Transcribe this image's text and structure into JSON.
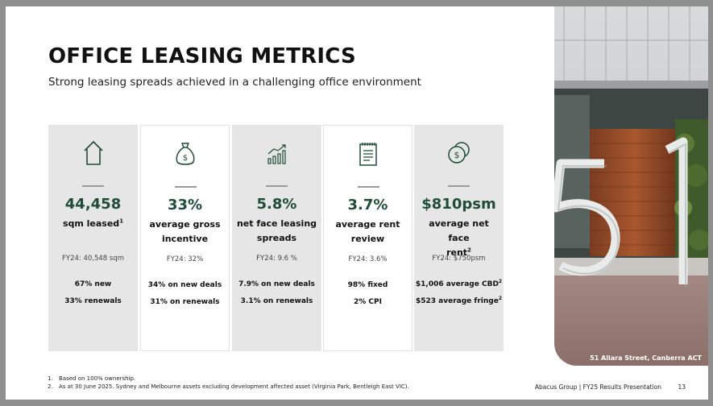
{
  "slide": {
    "title": "OFFICE LEASING METRICS",
    "subtitle": "Strong leasing spreads achieved in a challenging office environment"
  },
  "accent_color": "#1f4d37",
  "cards": [
    {
      "icon": "house-icon",
      "value": "44,458",
      "label": "sqm leased",
      "label_sup": "1",
      "label_line2": "",
      "fy": "FY24: 40,548 sqm",
      "detail1": "67% new",
      "detail1_sup": "",
      "detail2": "33% renewals",
      "detail2_sup": ""
    },
    {
      "icon": "money-bag-icon",
      "value": "33%",
      "label": "average gross",
      "label_sup": "",
      "label_line2": "incentive",
      "fy": "FY24: 32%",
      "detail1": "34% on new deals",
      "detail1_sup": "",
      "detail2": "31% on renewals",
      "detail2_sup": ""
    },
    {
      "icon": "bar-chart-icon",
      "value": "5.8%",
      "label": "net face leasing",
      "label_sup": "",
      "label_line2": "spreads",
      "fy": "FY24: 9.6 %",
      "detail1": "7.9% on new deals",
      "detail1_sup": "",
      "detail2": "3.1% on renewals",
      "detail2_sup": ""
    },
    {
      "icon": "notepad-icon",
      "value": "3.7%",
      "label": "average rent",
      "label_sup": "",
      "label_line2": "review",
      "fy": "FY24: 3.6%",
      "detail1": "98% fixed",
      "detail1_sup": "",
      "detail2": "2% CPI",
      "detail2_sup": ""
    },
    {
      "icon": "coins-icon",
      "value": "$810psm",
      "label": "average net face",
      "label_sup": "",
      "label_line2": "rent",
      "label_line2_sup": "2",
      "fy": "FY24: $750psm",
      "detail1": "$1,006 average CBD",
      "detail1_sup": "2",
      "detail2": "$523 average fringe",
      "detail2_sup": "2"
    }
  ],
  "photo": {
    "caption": "51 Allara Street, Canberra ACT"
  },
  "footnotes": [
    {
      "num": "1.",
      "text": "Based on 100% ownership."
    },
    {
      "num": "2.",
      "text": "As at 30 June 2025. Sydney and Melbourne assets excluding development affected asset (Virginia Park, Bentleigh East VIC)."
    }
  ],
  "footer": {
    "presentation": "Abacus Group | FY25 Results Presentation",
    "page": "13"
  }
}
